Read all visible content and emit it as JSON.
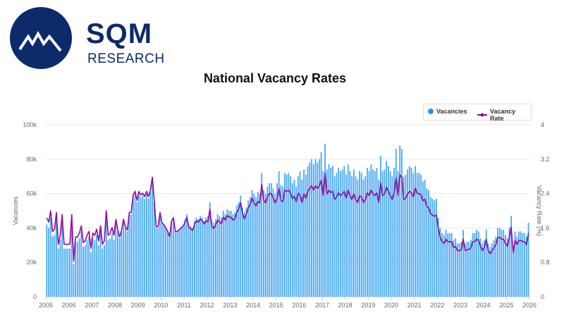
{
  "brand": {
    "name": "SQM",
    "subtitle": "RESEARCH",
    "color": "#0d2a6b"
  },
  "chart_data": {
    "type": "bar+line",
    "title": "National Vacancy Rates",
    "legend_position": "top-right",
    "grid": true,
    "x_tick_labels": [
      "2005",
      "2006",
      "2007",
      "2008",
      "2009",
      "2010",
      "2011",
      "2012",
      "2013",
      "2014",
      "2015",
      "2016",
      "2017",
      "2018",
      "2019",
      "2020",
      "2021",
      "2022",
      "2023",
      "2024",
      "2025",
      "2026"
    ],
    "y_left": {
      "label": "Vacancies",
      "range": [
        0,
        100000
      ],
      "tick_labels": [
        "0",
        "20k",
        "40k",
        "60k",
        "80k",
        "100k"
      ]
    },
    "y_right": {
      "label": "Vacancy Rate (%)",
      "range": [
        0,
        4
      ],
      "tick_labels": [
        "0",
        "0.8",
        "1.6",
        "2.4",
        "3.2",
        "4"
      ]
    },
    "frequency": "monthly",
    "start": "2005-01",
    "series": [
      {
        "name": "Vacancies",
        "type": "bar",
        "axis": "left",
        "color": "#4aaaf3",
        "values": [
          42000,
          40000,
          46000,
          35000,
          36000,
          45000,
          28000,
          33000,
          44000,
          28000,
          28000,
          28000,
          28000,
          44000,
          19000,
          32000,
          32000,
          34000,
          38000,
          29000,
          30000,
          33000,
          35000,
          26000,
          34000,
          33000,
          36000,
          30000,
          38000,
          28000,
          30000,
          46000,
          33000,
          34000,
          37000,
          33000,
          44000,
          38000,
          34000,
          38000,
          44000,
          40000,
          38000,
          48000,
          48000,
          58000,
          60000,
          55000,
          60000,
          58000,
          59000,
          57000,
          60000,
          57000,
          61000,
          68000,
          55000,
          40000,
          40000,
          48000,
          43000,
          42000,
          40000,
          38000,
          35000,
          44000,
          46000,
          38000,
          38000,
          39000,
          40000,
          41000,
          45000,
          48000,
          42000,
          41000,
          40000,
          44000,
          46000,
          45000,
          47000,
          46000,
          44000,
          46000,
          47000,
          55000,
          44000,
          43000,
          45000,
          48000,
          47000,
          46000,
          50000,
          48000,
          51000,
          50000,
          50000,
          48000,
          49000,
          53000,
          55000,
          59000,
          52000,
          49000,
          52000,
          56000,
          58000,
          62000,
          60000,
          58000,
          61000,
          60000,
          72000,
          62000,
          60000,
          64000,
          66000,
          66000,
          63000,
          60000,
          66000,
          73000,
          65000,
          64000,
          72000,
          71000,
          72000,
          70000,
          66000,
          68000,
          64000,
          70000,
          73000,
          68000,
          74000,
          71000,
          76000,
          78000,
          80000,
          77000,
          80000,
          78000,
          80000,
          84000,
          73000,
          89000,
          74000,
          77000,
          75000,
          76000,
          70000,
          72000,
          75000,
          73000,
          74000,
          76000,
          71000,
          77000,
          73000,
          70000,
          74000,
          70000,
          68000,
          73000,
          72000,
          68000,
          70000,
          75000,
          73000,
          77000,
          74000,
          73000,
          75000,
          68000,
          82000,
          73000,
          74000,
          79000,
          76000,
          73000,
          70000,
          75000,
          86000,
          73000,
          88000,
          86000,
          70000,
          71000,
          74000,
          76000,
          75000,
          72000,
          76000,
          72000,
          72000,
          71000,
          67000,
          68000,
          63000,
          62000,
          58000,
          57000,
          56000,
          57000,
          46000,
          40000,
          37000,
          36000,
          39000,
          37000,
          37000,
          37000,
          33000,
          34000,
          31000,
          31000,
          32000,
          39000,
          31000,
          32000,
          32000,
          33000,
          37000,
          37000,
          39000,
          38000,
          34000,
          31000,
          33000,
          39000,
          31000,
          29000,
          31000,
          33000,
          35000,
          40000,
          40000,
          39000,
          39000,
          36000,
          34000,
          40000,
          47000,
          30000,
          38000,
          35000,
          38000,
          38000,
          37000,
          37000,
          35000,
          43000
        ]
      },
      {
        "name": "Vacancy Rate",
        "type": "line",
        "axis": "right",
        "color": "#950a95",
        "values": [
          1.83,
          1.74,
          2.0,
          1.52,
          1.57,
          1.96,
          1.22,
          1.43,
          1.91,
          1.22,
          1.22,
          1.22,
          1.22,
          1.91,
          0.83,
          1.39,
          1.39,
          1.48,
          1.65,
          1.26,
          1.3,
          1.43,
          1.52,
          1.13,
          1.48,
          1.43,
          1.57,
          1.3,
          1.65,
          1.22,
          1.3,
          2.0,
          1.43,
          1.48,
          1.61,
          1.43,
          1.8,
          1.55,
          1.39,
          1.55,
          1.8,
          1.63,
          1.55,
          1.96,
          1.96,
          2.37,
          2.45,
          2.24,
          2.45,
          2.37,
          2.41,
          2.33,
          2.45,
          2.33,
          2.49,
          2.78,
          2.24,
          1.63,
          1.63,
          1.96,
          1.72,
          1.68,
          1.6,
          1.52,
          1.4,
          1.76,
          1.84,
          1.52,
          1.52,
          1.56,
          1.6,
          1.64,
          1.73,
          1.85,
          1.62,
          1.58,
          1.54,
          1.69,
          1.77,
          1.73,
          1.81,
          1.77,
          1.69,
          1.77,
          1.74,
          2.04,
          1.63,
          1.59,
          1.67,
          1.78,
          1.74,
          1.7,
          1.85,
          1.78,
          1.89,
          1.85,
          1.85,
          1.78,
          1.81,
          1.96,
          2.04,
          2.19,
          1.93,
          1.81,
          1.93,
          2.07,
          2.15,
          2.3,
          2.18,
          2.11,
          2.22,
          2.18,
          2.62,
          2.25,
          2.18,
          2.33,
          2.4,
          2.4,
          2.29,
          2.18,
          2.28,
          2.52,
          2.24,
          2.21,
          2.48,
          2.45,
          2.48,
          2.41,
          2.28,
          2.34,
          2.21,
          2.41,
          2.35,
          2.19,
          2.39,
          2.29,
          2.45,
          2.52,
          2.58,
          2.48,
          2.58,
          2.52,
          2.58,
          2.71,
          2.35,
          2.87,
          2.39,
          2.48,
          2.42,
          2.45,
          2.26,
          2.32,
          2.42,
          2.35,
          2.39,
          2.45,
          2.29,
          2.48,
          2.35,
          2.26,
          2.39,
          2.26,
          2.19,
          2.35,
          2.32,
          2.19,
          2.26,
          2.42,
          2.35,
          2.48,
          2.39,
          2.35,
          2.42,
          2.19,
          2.65,
          2.35,
          2.39,
          2.55,
          2.45,
          2.35,
          2.26,
          2.42,
          2.77,
          2.35,
          2.84,
          2.77,
          2.26,
          2.29,
          2.39,
          2.45,
          2.42,
          2.32,
          2.53,
          2.4,
          2.4,
          2.37,
          2.23,
          2.27,
          2.1,
          2.07,
          1.93,
          1.9,
          1.87,
          1.9,
          1.59,
          1.38,
          1.28,
          1.24,
          1.34,
          1.28,
          1.28,
          1.28,
          1.14,
          1.17,
          1.07,
          1.07,
          1.1,
          1.34,
          1.07,
          1.1,
          1.1,
          1.14,
          1.28,
          1.28,
          1.34,
          1.31,
          1.17,
          1.07,
          1.14,
          1.34,
          1.07,
          1.0,
          1.07,
          1.14,
          1.21,
          1.38,
          1.38,
          1.34,
          1.34,
          1.24,
          1.17,
          1.38,
          1.62,
          1.03,
          1.31,
          1.21,
          1.31,
          1.31,
          1.28,
          1.28,
          1.21,
          1.48
        ]
      }
    ]
  }
}
